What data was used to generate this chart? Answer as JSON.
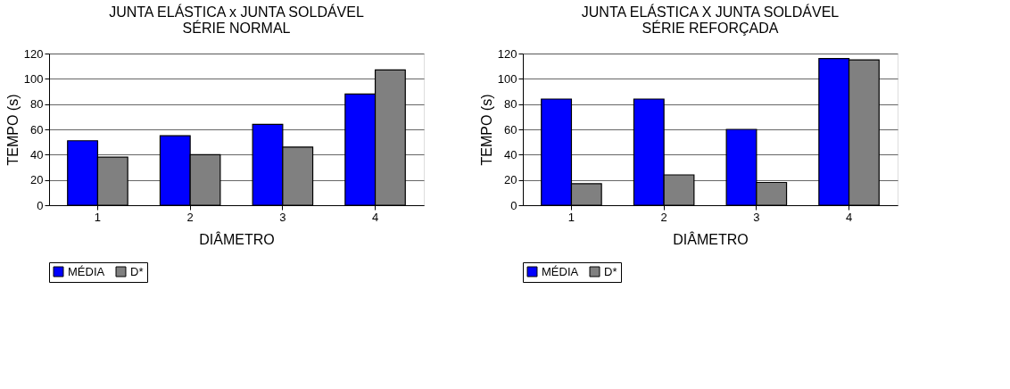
{
  "chart_data": [
    {
      "type": "bar",
      "title": "JUNTA ELÁSTICA x JUNTA SOLDÁVEL\nSÉRIE NORMAL",
      "xlabel": "DIÂMETRO",
      "ylabel": "TEMPO (s)",
      "categories": [
        "1",
        "2",
        "3",
        "4"
      ],
      "series": [
        {
          "name": "MÉDIA",
          "color": "#0000ff",
          "values": [
            51,
            55,
            64,
            88
          ]
        },
        {
          "name": "D*",
          "color": "#808080",
          "values": [
            38,
            40,
            46,
            107
          ]
        }
      ],
      "ylim": [
        0,
        120
      ],
      "yticks": [
        0,
        20,
        40,
        60,
        80,
        100,
        120
      ],
      "grid": "y",
      "legend": "bottom"
    },
    {
      "type": "bar",
      "title": "JUNTA ELÁSTICA X JUNTA SOLDÁVEL\nSÉRIE REFORÇADA",
      "xlabel": "DIÂMETRO",
      "ylabel": "TEMPO (s)",
      "categories": [
        "1",
        "2",
        "3",
        "4"
      ],
      "series": [
        {
          "name": "MÉDIA",
          "color": "#0000ff",
          "values": [
            84,
            84,
            60,
            116
          ]
        },
        {
          "name": "D*",
          "color": "#808080",
          "values": [
            17,
            24,
            18,
            115
          ]
        }
      ],
      "ylim": [
        0,
        120
      ],
      "yticks": [
        0,
        20,
        40,
        60,
        80,
        100,
        120
      ],
      "grid": "y",
      "legend": "bottom"
    }
  ]
}
